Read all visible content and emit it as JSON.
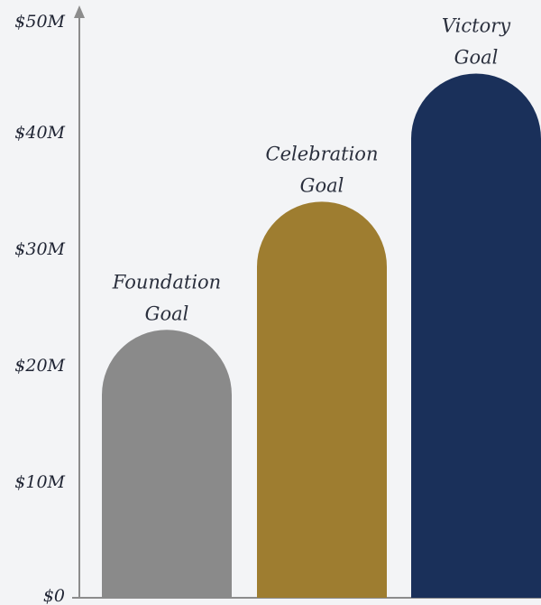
{
  "chart_data": {
    "type": "bar",
    "categories": [
      "Foundation Goal",
      "Celebration Goal",
      "Victory Goal"
    ],
    "category_label_lines": [
      [
        "Foundation",
        "Goal"
      ],
      [
        "Celebration",
        "Goal"
      ],
      [
        "Victory",
        "Goal"
      ]
    ],
    "values": [
      23,
      34,
      45
    ],
    "bar_colors": [
      "#8a8a8a",
      "#9e7d30",
      "#1a305a"
    ],
    "ylim": [
      0,
      50
    ],
    "yticks": [
      0,
      10,
      20,
      30,
      40,
      50
    ],
    "ytick_labels": [
      "$0",
      "$10M",
      "$20M",
      "$30M",
      "$40M",
      "$50M"
    ],
    "xlabel": "",
    "ylabel": "",
    "grid": false,
    "axis_color": "#8c8c8c",
    "background": "#f3f4f6"
  }
}
